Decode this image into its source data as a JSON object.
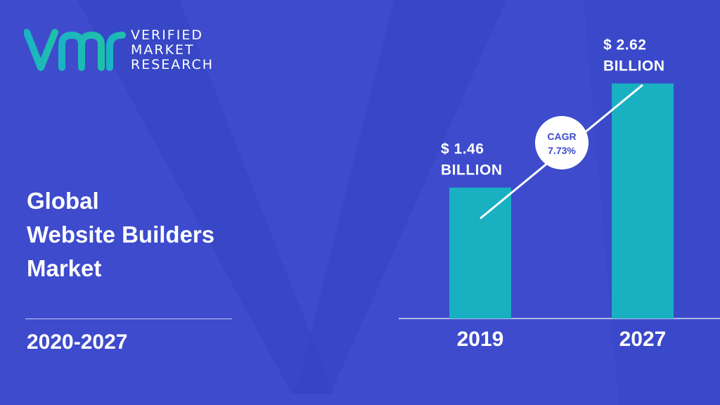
{
  "brand": {
    "logo_lines": [
      "VERIFIED",
      "MARKET",
      "RESEARCH"
    ],
    "logo_colors": [
      "#1bb3c4",
      "#1fc0a8"
    ]
  },
  "title_lines": [
    "Global",
    "Website Builders",
    "Market"
  ],
  "period": "2020-2027",
  "colors": {
    "background": "#3d4bcc",
    "bar": "#19b0c2",
    "text": "#ffffff"
  },
  "chart_data": {
    "type": "bar",
    "categories": [
      "2019",
      "2027"
    ],
    "values": [
      1.46,
      2.62
    ],
    "value_labels": [
      [
        "$ 1.46",
        "BILLION"
      ],
      [
        "$ 2.62",
        "BILLION"
      ]
    ],
    "unit": "USD Billion",
    "ylim": [
      0,
      2.9
    ],
    "grid": false,
    "annotation": {
      "label": "CAGR",
      "value": "7.73%"
    }
  }
}
